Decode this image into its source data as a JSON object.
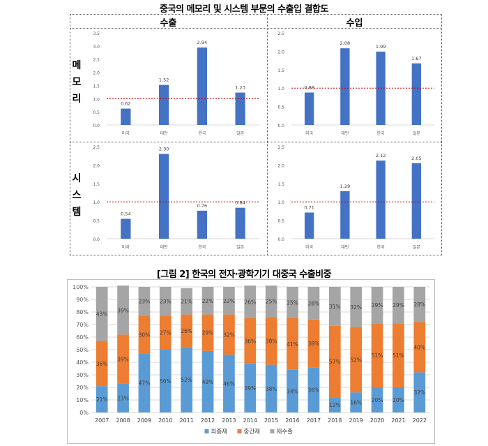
{
  "figure1": {
    "title": "중국의 메모리 및 시스템 부문의 수출입 결합도",
    "col_headers": [
      "수출",
      "수입"
    ],
    "row_headers": [
      [
        "메",
        "모",
        "리"
      ],
      [
        "시",
        "스",
        "템"
      ]
    ]
  },
  "figure2": {
    "title": "[그림 2] 한국의 전자·광학기기 대중국 수출비중"
  },
  "chart_data": [
    {
      "type": "bar",
      "panel": "메모리-수출",
      "categories": [
        "미국",
        "대만",
        "한국",
        "일본"
      ],
      "values": [
        0.62,
        1.52,
        2.94,
        1.23
      ],
      "value_labels": [
        "0.62",
        "1.52",
        "2.94",
        "1.23"
      ],
      "ylim": [
        0,
        3.5
      ],
      "yticks": [
        "0.0",
        "0.5",
        "1.0",
        "1.5",
        "2.0",
        "2.5",
        "3.0",
        "3.5"
      ],
      "reference_line": 1.0,
      "bar_color": "#4472C4",
      "reference_color": "#C00000"
    },
    {
      "type": "bar",
      "panel": "메모리-수입",
      "categories": [
        "미국",
        "대만",
        "한국",
        "일본"
      ],
      "values": [
        0.88,
        2.08,
        1.99,
        1.67
      ],
      "value_labels": [
        "0.88",
        "2.08",
        "1.99",
        "1.67"
      ],
      "ylim": [
        0,
        2.5
      ],
      "yticks": [
        "0.0",
        "0.5",
        "1.0",
        "1.5",
        "2.0",
        "2.5"
      ],
      "reference_line": 1.0,
      "bar_color": "#4472C4",
      "reference_color": "#C00000"
    },
    {
      "type": "bar",
      "panel": "시스템-수출",
      "categories": [
        "미국",
        "대만",
        "한국",
        "일본"
      ],
      "values": [
        0.54,
        2.3,
        0.76,
        0.84
      ],
      "value_labels": [
        "0.54",
        "2.30",
        "0.76",
        "0.84"
      ],
      "ylim": [
        0,
        2.5
      ],
      "yticks": [
        "0.0",
        "0.5",
        "1.0",
        "1.5",
        "2.0",
        "2.5"
      ],
      "reference_line": 1.0,
      "bar_color": "#4472C4",
      "reference_color": "#C00000"
    },
    {
      "type": "bar",
      "panel": "시스템-수입",
      "categories": [
        "미국",
        "대만",
        "한국",
        "일본"
      ],
      "values": [
        0.71,
        1.29,
        2.12,
        2.05
      ],
      "value_labels": [
        "0.71",
        "1.29",
        "2.12",
        "2.05"
      ],
      "ylim": [
        0,
        2.5
      ],
      "yticks": [
        "0.0",
        "0.5",
        "1.0",
        "1.5",
        "2.0",
        "2.5"
      ],
      "reference_line": 1.0,
      "bar_color": "#4472C4",
      "reference_color": "#C00000"
    },
    {
      "type": "bar",
      "stacked": true,
      "panel": "수출비중",
      "categories": [
        "2007",
        "2008",
        "2009",
        "2010",
        "2011",
        "2012",
        "2013",
        "2014",
        "2015",
        "2016",
        "2017",
        "2018",
        "2019",
        "2020",
        "2021",
        "2022"
      ],
      "ylim": [
        0,
        100
      ],
      "yticks": [
        "0%",
        "10%",
        "20%",
        "30%",
        "40%",
        "50%",
        "60%",
        "70%",
        "80%",
        "90%",
        "100%"
      ],
      "grid": true,
      "legend_position": "bottom",
      "series": [
        {
          "name": "최종재",
          "color": "#5B9BD5",
          "values": [
            21,
            23,
            47,
            50,
            52,
            49,
            46,
            39,
            38,
            34,
            36,
            12,
            16,
            20,
            20,
            32
          ]
        },
        {
          "name": "중간재",
          "color": "#ED7D31",
          "values": [
            36,
            39,
            30,
            27,
            26,
            29,
            32,
            36,
            38,
            41,
            38,
            57,
            52,
            51,
            51,
            40
          ]
        },
        {
          "name": "재수출",
          "color": "#A5A5A5",
          "values": [
            43,
            39,
            23,
            23,
            21,
            22,
            22,
            26,
            25,
            25,
            26,
            31,
            32,
            29,
            29,
            28
          ]
        }
      ]
    }
  ]
}
